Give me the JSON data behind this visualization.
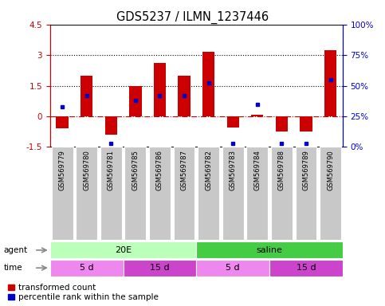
{
  "title": "GDS5237 / ILMN_1237446",
  "samples": [
    "GSM569779",
    "GSM569780",
    "GSM569781",
    "GSM569785",
    "GSM569786",
    "GSM569787",
    "GSM569782",
    "GSM569783",
    "GSM569784",
    "GSM569788",
    "GSM569789",
    "GSM569790"
  ],
  "bar_values": [
    -0.6,
    2.0,
    -0.9,
    1.5,
    2.6,
    2.0,
    3.15,
    -0.55,
    0.07,
    -0.75,
    -0.75,
    3.25
  ],
  "pct_values": [
    33,
    42,
    3,
    38,
    42,
    42,
    52,
    3,
    35,
    3,
    3,
    55
  ],
  "ylim_left": [
    -1.5,
    4.5
  ],
  "ylim_right": [
    0,
    100
  ],
  "yticks_left": [
    -1.5,
    0.0,
    1.5,
    3.0,
    4.5
  ],
  "yticks_right": [
    0,
    25,
    50,
    75,
    100
  ],
  "ytick_labels_left": [
    "-1.5",
    "0",
    "1.5",
    "3",
    "4.5"
  ],
  "ytick_labels_right": [
    "0%",
    "25%",
    "50%",
    "75%",
    "100%"
  ],
  "hlines": [
    1.5,
    3.0
  ],
  "zero_line": 0.0,
  "bar_color": "#cc0000",
  "pct_color": "#0000cc",
  "agent_groups": [
    {
      "label": "20E",
      "start": 0,
      "end": 6,
      "color": "#bbffbb"
    },
    {
      "label": "saline",
      "start": 6,
      "end": 12,
      "color": "#44cc44"
    }
  ],
  "time_groups": [
    {
      "label": "5 d",
      "start": 0,
      "end": 3,
      "color": "#ee88ee"
    },
    {
      "label": "15 d",
      "start": 3,
      "end": 6,
      "color": "#cc44cc"
    },
    {
      "label": "5 d",
      "start": 6,
      "end": 9,
      "color": "#ee88ee"
    },
    {
      "label": "15 d",
      "start": 9,
      "end": 12,
      "color": "#cc44cc"
    }
  ],
  "legend_items": [
    {
      "label": "transformed count",
      "color": "#cc0000"
    },
    {
      "label": "percentile rank within the sample",
      "color": "#0000cc"
    }
  ]
}
